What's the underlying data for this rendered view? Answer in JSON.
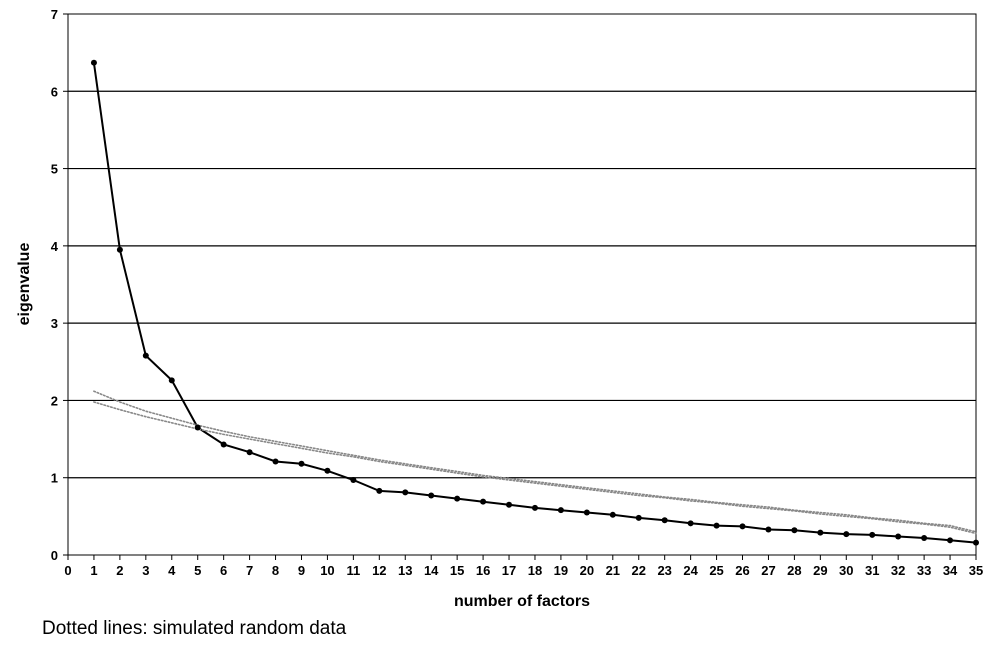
{
  "chart_data": {
    "type": "line",
    "title": "",
    "xlabel": "number of factors",
    "ylabel": "eigenvalue",
    "xlim": [
      0,
      35
    ],
    "ylim": [
      0,
      7
    ],
    "x_ticks": [
      0,
      1,
      2,
      3,
      4,
      5,
      6,
      7,
      8,
      9,
      10,
      11,
      12,
      13,
      14,
      15,
      16,
      17,
      18,
      19,
      20,
      21,
      22,
      23,
      24,
      25,
      26,
      27,
      28,
      29,
      30,
      31,
      32,
      33,
      34,
      35
    ],
    "y_ticks": [
      0,
      1,
      2,
      3,
      4,
      5,
      6,
      7
    ],
    "grid": "horizontal",
    "legend": "none",
    "series": [
      {
        "style": "solid-with-markers",
        "color": "#000000",
        "x": [
          1,
          2,
          3,
          4,
          5,
          6,
          7,
          8,
          9,
          10,
          11,
          12,
          13,
          14,
          15,
          16,
          17,
          18,
          19,
          20,
          21,
          22,
          23,
          24,
          25,
          26,
          27,
          28,
          29,
          30,
          31,
          32,
          33,
          34,
          35
        ],
        "values": [
          6.37,
          3.95,
          2.58,
          2.26,
          1.65,
          1.43,
          1.33,
          1.21,
          1.18,
          1.09,
          0.97,
          0.83,
          0.81,
          0.77,
          0.73,
          0.69,
          0.65,
          0.61,
          0.58,
          0.55,
          0.52,
          0.48,
          0.45,
          0.41,
          0.38,
          0.37,
          0.33,
          0.32,
          0.29,
          0.27,
          0.26,
          0.24,
          0.22,
          0.19,
          0.16
        ]
      },
      {
        "style": "dotted",
        "color": "#888888",
        "x": [
          1,
          2,
          3,
          4,
          5,
          6,
          7,
          8,
          9,
          10,
          11,
          12,
          13,
          14,
          15,
          16,
          17,
          18,
          19,
          20,
          21,
          22,
          23,
          24,
          25,
          26,
          27,
          28,
          29,
          30,
          31,
          32,
          33,
          34,
          35
        ],
        "values": [
          2.12,
          1.98,
          1.86,
          1.77,
          1.68,
          1.6,
          1.53,
          1.47,
          1.41,
          1.35,
          1.29,
          1.23,
          1.18,
          1.13,
          1.08,
          1.03,
          0.99,
          0.95,
          0.91,
          0.87,
          0.83,
          0.79,
          0.75,
          0.72,
          0.68,
          0.65,
          0.62,
          0.58,
          0.55,
          0.52,
          0.48,
          0.45,
          0.41,
          0.38,
          0.3
        ]
      },
      {
        "style": "dotted",
        "color": "#888888",
        "x": [
          1,
          2,
          3,
          4,
          5,
          6,
          7,
          8,
          9,
          10,
          11,
          12,
          13,
          14,
          15,
          16,
          17,
          18,
          19,
          20,
          21,
          22,
          23,
          24,
          25,
          26,
          27,
          28,
          29,
          30,
          31,
          32,
          33,
          34,
          35
        ],
        "values": [
          1.98,
          1.88,
          1.79,
          1.71,
          1.63,
          1.56,
          1.5,
          1.44,
          1.38,
          1.32,
          1.27,
          1.21,
          1.16,
          1.11,
          1.06,
          1.01,
          0.97,
          0.93,
          0.89,
          0.85,
          0.81,
          0.77,
          0.74,
          0.7,
          0.67,
          0.63,
          0.6,
          0.57,
          0.53,
          0.5,
          0.47,
          0.43,
          0.4,
          0.36,
          0.28
        ]
      }
    ]
  },
  "footnote": "Dotted lines: simulated random data"
}
